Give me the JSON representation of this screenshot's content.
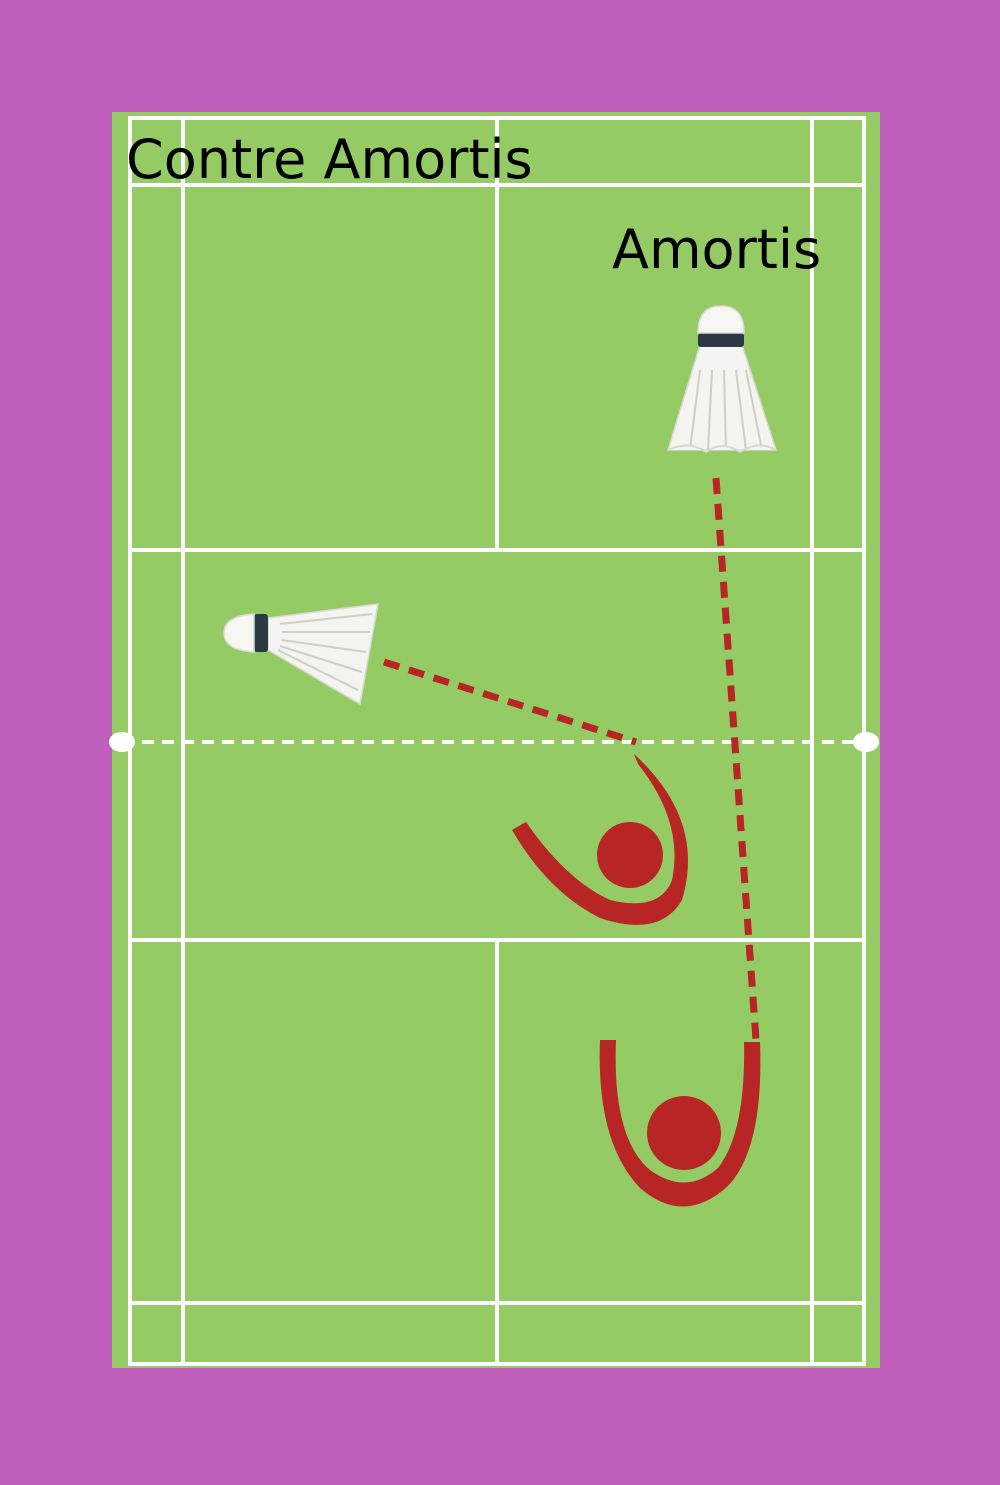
{
  "diagram": {
    "labels": {
      "contre_amortis": "Contre Amortis",
      "amortis": "Amortis"
    },
    "colors": {
      "background": "#bf5fbb",
      "court": "#95cb64",
      "lines": "#ffffff",
      "player": "#b82525",
      "trajectory": "#b82525",
      "shuttle_feathers": "#f4f4f0",
      "shuttle_band": "#2b3a44"
    },
    "elements": {
      "court": "badminton-court",
      "net": "net-dashed-line",
      "players": [
        "player-near-net",
        "player-rear-court"
      ],
      "shuttles": [
        "shuttle-amortis",
        "shuttle-contre-amortis"
      ],
      "trajectories": [
        "trajectory-amortis",
        "trajectory-contre-amortis"
      ]
    }
  }
}
